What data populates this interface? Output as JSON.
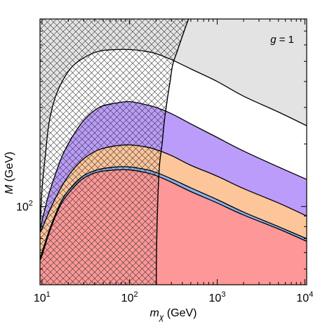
{
  "chart_data": {
    "type": "area",
    "title": "",
    "xlabel": {
      "var": "m",
      "sub": "χ",
      "unit": " (GeV)"
    },
    "ylabel": {
      "var": "M",
      "unit": " (GeV)"
    },
    "xscale": "log",
    "yscale": "log",
    "xlim": [
      9.5,
      10500
    ],
    "ylim": [
      42,
      800
    ],
    "x_ticks": [
      {
        "value": 10,
        "base": "10",
        "exp": "1"
      },
      {
        "value": 100,
        "base": "10",
        "exp": "2"
      },
      {
        "value": 1000,
        "base": "10",
        "exp": "3"
      },
      {
        "value": 10000,
        "base": "10",
        "exp": "4"
      }
    ],
    "y_ticks": [
      {
        "value": 100,
        "base": "10",
        "exp": "2"
      }
    ],
    "annotation": {
      "var": "g",
      "text": " = 1",
      "position": "top-right"
    },
    "colors": {
      "region_gray": "#e3e3e3",
      "region_white": "#ffffff",
      "region_purple": "#bb9cfb",
      "region_orange": "#fdc59a",
      "region_blue": "#8ab0ea",
      "region_red": "#fe9797",
      "hatch": "#333333",
      "line": "#000000"
    },
    "bands": [
      {
        "id": "gray",
        "color_key": "region_gray",
        "x": [
          9.5,
          10500
        ],
        "upper": [
          800,
          800
        ]
      },
      {
        "id": "white",
        "color_key": "region_white",
        "x": [
          9.5,
          10,
          11,
          12,
          14,
          17,
          22,
          30,
          45,
          70,
          100,
          150,
          200,
          300,
          500,
          1000,
          2000,
          5000,
          10500
        ],
        "upper": [
          75,
          120,
          180,
          250,
          330,
          400,
          470,
          520,
          560,
          570,
          570,
          560,
          545,
          510,
          460,
          400,
          340,
          285,
          245
        ]
      },
      {
        "id": "purple",
        "color_key": "region_purple",
        "x": [
          9.5,
          10,
          11,
          12,
          14,
          17,
          22,
          30,
          45,
          70,
          100,
          150,
          200,
          300,
          500,
          1000,
          2000,
          5000,
          10500
        ],
        "upper": [
          75,
          85,
          100,
          115,
          140,
          175,
          215,
          260,
          300,
          315,
          320,
          310,
          300,
          280,
          250,
          215,
          185,
          155,
          135
        ]
      },
      {
        "id": "orange",
        "color_key": "region_orange",
        "x": [
          9.5,
          10,
          11,
          12,
          14,
          17,
          22,
          30,
          45,
          70,
          100,
          150,
          200,
          300,
          500,
          1000,
          2000,
          5000,
          10500
        ],
        "upper": [
          75,
          78,
          86,
          94,
          108,
          126,
          148,
          170,
          188,
          196,
          198,
          194,
          188,
          176,
          158,
          140,
          122,
          104,
          90
        ]
      },
      {
        "id": "blue",
        "color_key": "region_blue",
        "x": [
          9.5,
          10,
          11,
          12,
          14,
          17,
          22,
          30,
          45,
          70,
          100,
          150,
          200,
          300,
          500,
          1000,
          2000,
          5000,
          10500
        ],
        "upper": [
          56,
          60,
          68,
          76,
          90,
          108,
          125,
          141,
          151,
          155,
          155,
          151,
          146,
          136,
          123,
          108,
          94,
          80,
          70
        ]
      },
      {
        "id": "red",
        "color_key": "region_red",
        "x": [
          9.5,
          10,
          11,
          12,
          14,
          17,
          22,
          30,
          45,
          70,
          100,
          150,
          200,
          300,
          500,
          1000,
          2000,
          5000,
          10500
        ],
        "upper": [
          55,
          58,
          66,
          74,
          88,
          105,
          121,
          137,
          147,
          150,
          150,
          146,
          141,
          131,
          118,
          104,
          91,
          78,
          68
        ]
      }
    ],
    "boundaries": [
      {
        "id": "white_top",
        "band": "white"
      },
      {
        "id": "purple_top",
        "band": "purple"
      },
      {
        "id": "orange_top",
        "band": "orange"
      },
      {
        "id": "blue_top",
        "band": "blue"
      },
      {
        "id": "red_top",
        "band": "red"
      }
    ],
    "exclusion_curve": {
      "x": [
        470,
        430,
        390,
        350,
        310,
        290,
        270,
        250,
        235,
        220,
        212,
        208,
        205,
        203,
        202,
        202
      ],
      "y": [
        800,
        720,
        640,
        560,
        480,
        400,
        330,
        260,
        200,
        160,
        120,
        95,
        75,
        60,
        50,
        42
      ]
    },
    "hatched_region": "left of exclusion curve"
  }
}
